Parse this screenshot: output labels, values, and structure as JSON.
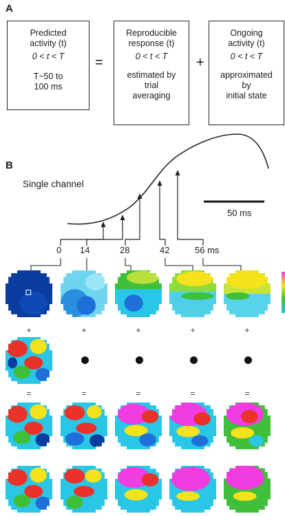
{
  "panelA": {
    "label": "A",
    "box1": [
      "Predicted",
      "activity (t)",
      "0 < t < T",
      "",
      "T~50 to",
      "100 ms"
    ],
    "op1": "=",
    "box2": [
      "Reproducible",
      "response (t)",
      "0 < t < T",
      "",
      "estimated by",
      "trial",
      "averaging"
    ],
    "op2": "+",
    "box3": [
      "Ongoing",
      "activity (t)",
      "0 < t < T",
      "",
      "approximated",
      "by",
      "initial state"
    ]
  },
  "panelB": {
    "label": "B",
    "channel_label": "Single channel",
    "scale_bar_label": "50 ms",
    "time_ticks": [
      "0",
      "14",
      "28",
      "42",
      "56 ms"
    ],
    "plus_sign": "+",
    "equals_sign": "=",
    "colors": {
      "deep_blue": "#0a3c9e",
      "blue": "#1e6fd8",
      "cyan": "#29c6e6",
      "green": "#3fbf3a",
      "yellow": "#f4e21a",
      "red": "#e8322a",
      "magenta": "#f03ce0"
    }
  }
}
